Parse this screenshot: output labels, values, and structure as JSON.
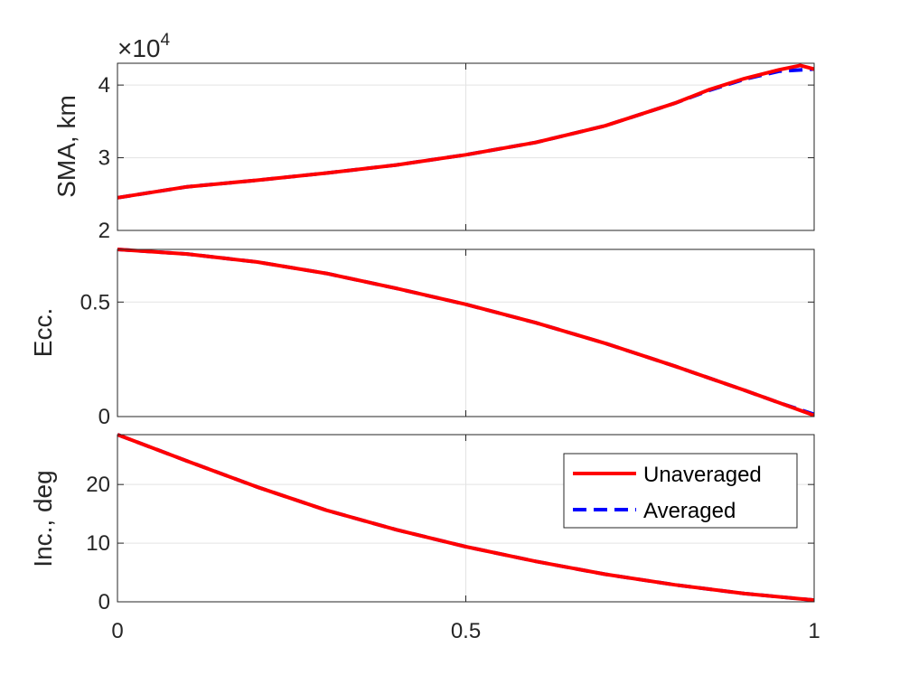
{
  "colors": {
    "unaveraged": "#ff0000",
    "averaged": "#0000ff",
    "axis": "#262626",
    "grid": "#e3e3e3",
    "background": "#ffffff"
  },
  "legend": {
    "location": "north-east of bottom panel",
    "entries": [
      "Unaveraged",
      "Averaged"
    ]
  },
  "chart_data": [
    {
      "type": "line",
      "ylabel": "SMA, km",
      "xlabel": "",
      "xlim": [
        0,
        1
      ],
      "ylim": [
        20000,
        43000
      ],
      "x_ticks": [
        0,
        0.5,
        1
      ],
      "y_ticks": [
        20000,
        30000,
        40000
      ],
      "y_tick_labels": [
        "2",
        "3",
        "4"
      ],
      "exponent": {
        "base": "×10",
        "power": "4"
      },
      "grid": true,
      "series": [
        {
          "name": "Unaveraged",
          "style": "solid",
          "x": [
            0,
            0.1,
            0.2,
            0.3,
            0.4,
            0.5,
            0.6,
            0.7,
            0.8,
            0.85,
            0.9,
            0.95,
            0.98,
            1.0
          ],
          "y": [
            24500,
            26000,
            26900,
            27900,
            29000,
            30400,
            32100,
            34400,
            37500,
            39400,
            40900,
            42100,
            42700,
            42200
          ]
        },
        {
          "name": "Averaged",
          "style": "dashed",
          "x": [
            0,
            0.1,
            0.2,
            0.3,
            0.4,
            0.5,
            0.6,
            0.7,
            0.8,
            0.85,
            0.9,
            0.95,
            1.0
          ],
          "y": [
            24500,
            26000,
            26900,
            27900,
            29000,
            30400,
            32100,
            34400,
            37500,
            39300,
            40800,
            41900,
            42200
          ]
        }
      ]
    },
    {
      "type": "line",
      "ylabel": "Ecc.",
      "xlabel": "",
      "xlim": [
        0,
        1
      ],
      "ylim": [
        0,
        0.73
      ],
      "x_ticks": [
        0,
        0.5,
        1
      ],
      "y_ticks": [
        0,
        0.5
      ],
      "y_tick_labels": [
        "0",
        "0.5"
      ],
      "grid": true,
      "series": [
        {
          "name": "Unaveraged",
          "style": "solid",
          "x": [
            0,
            0.1,
            0.2,
            0.3,
            0.4,
            0.5,
            0.6,
            0.7,
            0.8,
            0.9,
            0.95,
            1.0
          ],
          "y": [
            0.73,
            0.71,
            0.675,
            0.625,
            0.56,
            0.49,
            0.41,
            0.32,
            0.22,
            0.115,
            0.06,
            0.005
          ]
        },
        {
          "name": "Averaged",
          "style": "dashed",
          "x": [
            0,
            0.1,
            0.2,
            0.3,
            0.4,
            0.5,
            0.6,
            0.7,
            0.8,
            0.9,
            0.95,
            1.0
          ],
          "y": [
            0.73,
            0.71,
            0.675,
            0.625,
            0.56,
            0.49,
            0.41,
            0.32,
            0.22,
            0.115,
            0.06,
            0.01
          ]
        }
      ]
    },
    {
      "type": "line",
      "ylabel": "Inc., deg",
      "xlabel": "",
      "xlim": [
        0,
        1
      ],
      "ylim": [
        0,
        28.5
      ],
      "x_ticks": [
        0,
        0.5,
        1
      ],
      "x_tick_labels": [
        "0",
        "0.5",
        "1"
      ],
      "y_ticks": [
        0,
        10,
        20
      ],
      "y_tick_labels": [
        "0",
        "10",
        "20"
      ],
      "grid": true,
      "series": [
        {
          "name": "Unaveraged",
          "style": "solid",
          "x": [
            0,
            0.1,
            0.2,
            0.3,
            0.4,
            0.5,
            0.6,
            0.7,
            0.8,
            0.9,
            1.0
          ],
          "y": [
            28.5,
            24.0,
            19.6,
            15.6,
            12.3,
            9.4,
            6.9,
            4.7,
            2.9,
            1.4,
            0.3
          ]
        },
        {
          "name": "Averaged",
          "style": "dashed",
          "x": [
            0,
            0.1,
            0.2,
            0.3,
            0.4,
            0.5,
            0.6,
            0.7,
            0.8,
            0.9,
            1.0
          ],
          "y": [
            28.5,
            24.0,
            19.6,
            15.6,
            12.3,
            9.4,
            6.9,
            4.7,
            2.9,
            1.4,
            0.3
          ]
        }
      ]
    }
  ]
}
